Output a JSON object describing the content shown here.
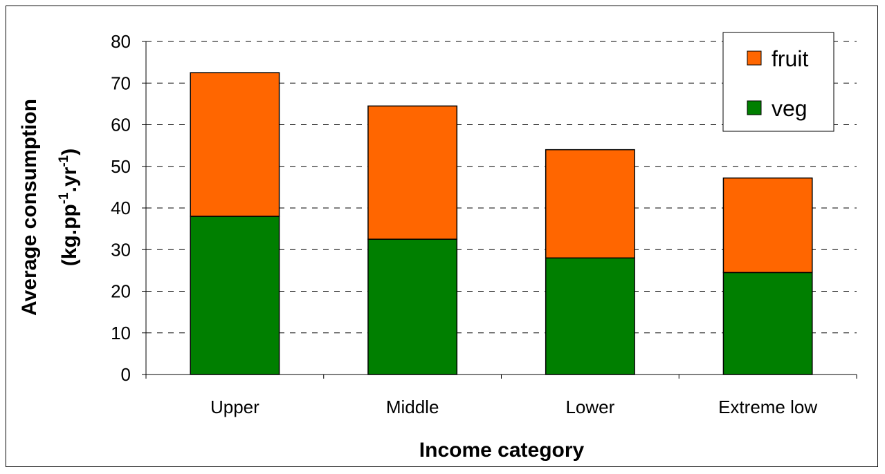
{
  "chart_data": {
    "type": "bar",
    "stacked": true,
    "categories": [
      "Upper",
      "Middle",
      "Lower",
      "Extreme low"
    ],
    "series": [
      {
        "name": "veg",
        "values": [
          38,
          32.5,
          28,
          24.5
        ],
        "color": "#007F00"
      },
      {
        "name": "fruit",
        "values": [
          34.5,
          32,
          26,
          22.7
        ],
        "color": "#FF6600"
      }
    ],
    "xlabel": "Income category",
    "ylabel_line1": "Average consumption",
    "ylabel_line2": {
      "prefix": "(kg.pp",
      "sup1": "-1",
      "middle": ".yr",
      "sup2": "-1",
      "suffix": ")"
    },
    "ylim": [
      0,
      80
    ],
    "yticks": [
      0,
      10,
      20,
      30,
      40,
      50,
      60,
      70,
      80
    ],
    "grid": "dashed horizontal",
    "legend_position": "top-right",
    "legend_order": [
      "fruit",
      "veg"
    ]
  }
}
